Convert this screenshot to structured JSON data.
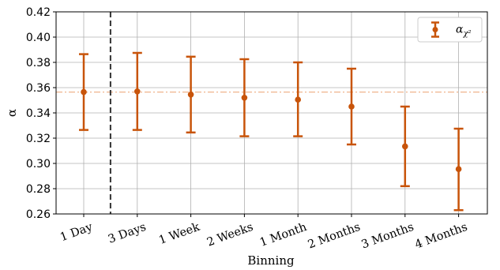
{
  "chart_data": {
    "type": "scatter",
    "categories": [
      "1 Day",
      "3 Days",
      "1 Week",
      "2 Weeks",
      "1 Month",
      "2 Months",
      "3 Months",
      "4 Months"
    ],
    "series": [
      {
        "name": "α",
        "name_subscript": "χ²",
        "color": "#c8540a",
        "values": [
          0.3565,
          0.357,
          0.3545,
          0.352,
          0.3505,
          0.345,
          0.3135,
          0.2955
        ],
        "lower": [
          0.3265,
          0.3265,
          0.3245,
          0.3215,
          0.3215,
          0.315,
          0.282,
          0.263
        ],
        "upper": [
          0.3865,
          0.3875,
          0.3845,
          0.3825,
          0.38,
          0.375,
          0.345,
          0.3275
        ]
      }
    ],
    "reference_line": {
      "y": 0.3565,
      "color": "#f0b48c",
      "style": "dash-dot"
    },
    "divider_after_category": "1 Day",
    "divider_color": "#333333",
    "xlabel": "Binning",
    "ylabel": "α",
    "ylim": [
      0.26,
      0.42
    ],
    "yticks": [
      "0.26",
      "0.28",
      "0.30",
      "0.32",
      "0.34",
      "0.36",
      "0.38",
      "0.40",
      "0.42"
    ],
    "grid": true,
    "legend": "top-right"
  }
}
